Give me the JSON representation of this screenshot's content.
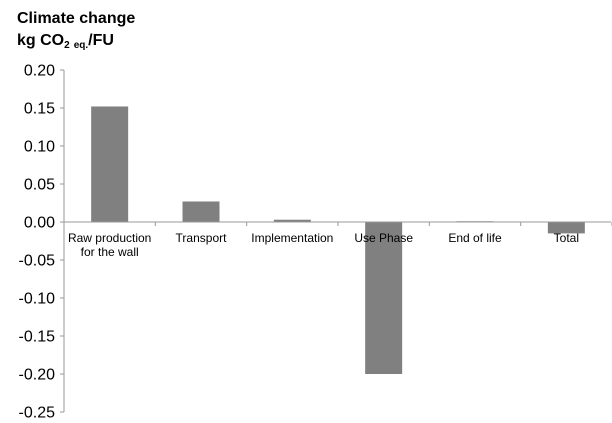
{
  "chart_data": {
    "type": "bar",
    "title_line1": "Climate change",
    "title_unit_prefix": "kg CO",
    "title_unit_co2_sub": "2",
    "title_unit_eq_sub": "eq.",
    "title_unit_suffix": "/FU",
    "categories": [
      [
        "Raw production",
        "for the wall"
      ],
      [
        "Transport"
      ],
      [
        "Implementation"
      ],
      [
        "Use Phase"
      ],
      [
        "End of life"
      ],
      [
        "Total"
      ]
    ],
    "values": [
      0.152,
      0.027,
      0.003,
      -0.2,
      0.001,
      -0.015
    ],
    "ylim": [
      -0.25,
      0.2
    ],
    "yticks": [
      "0.20",
      "0.15",
      "0.10",
      "0.05",
      "0.00",
      "-0.05",
      "-0.10",
      "-0.15",
      "-0.20",
      "-0.25"
    ],
    "ytick_values": [
      0.2,
      0.15,
      0.1,
      0.05,
      0.0,
      -0.05,
      -0.1,
      -0.15,
      -0.2,
      -0.25
    ],
    "bar_color": "#808080",
    "grid": false,
    "legend": "none"
  }
}
